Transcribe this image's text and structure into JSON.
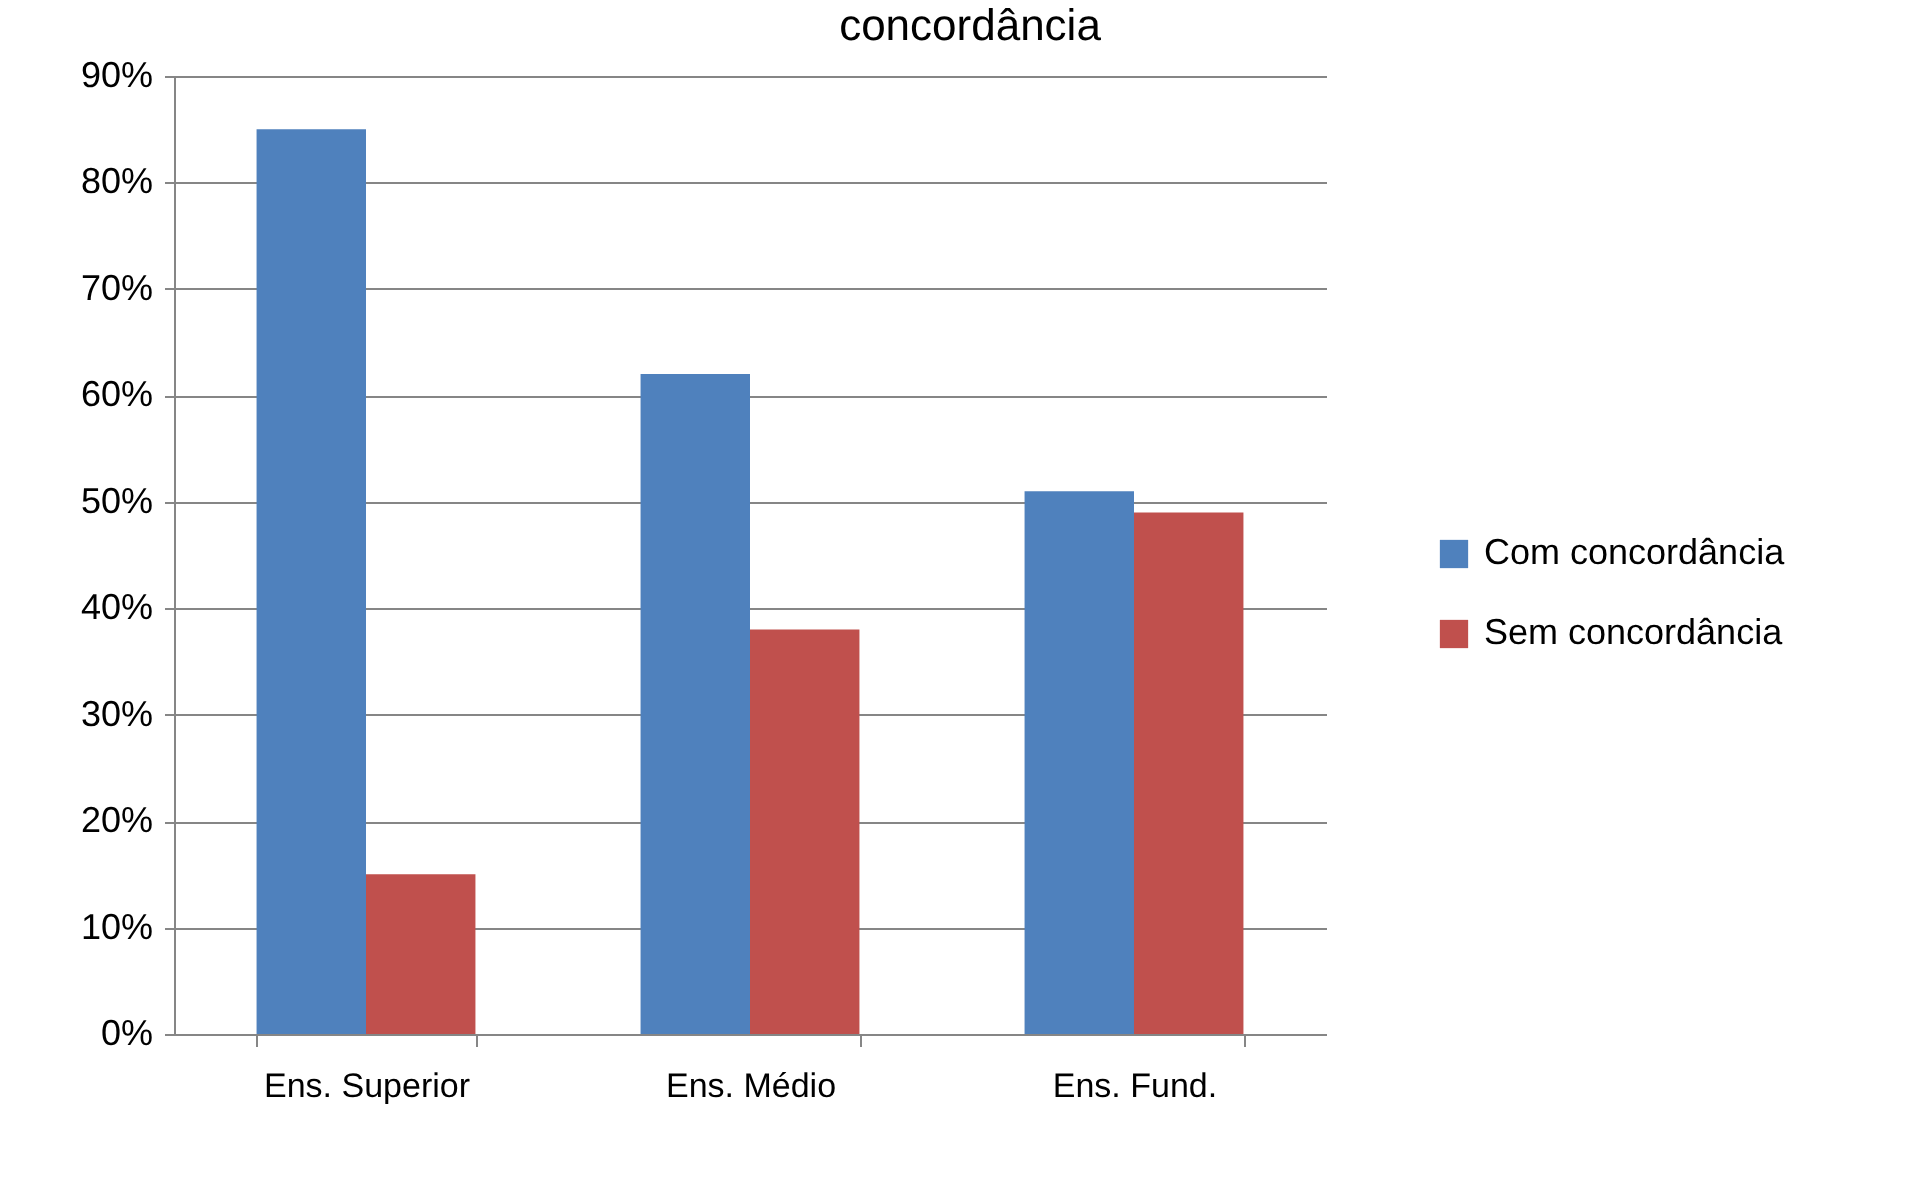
{
  "chart_data": {
    "type": "bar",
    "title": "concordância",
    "categories": [
      "Ens. Superior",
      "Ens. Médio",
      "Ens. Fund."
    ],
    "series": [
      {
        "name": "Com concordância",
        "color": "#4f81bd",
        "values": [
          85,
          62,
          51
        ]
      },
      {
        "name": "Sem concordância",
        "color": "#c0504d",
        "values": [
          15,
          38,
          49
        ]
      }
    ],
    "ylim": [
      0,
      90
    ],
    "yticks": [
      {
        "value": 0,
        "label": "0%"
      },
      {
        "value": 10,
        "label": "10%"
      },
      {
        "value": 20,
        "label": "20%"
      },
      {
        "value": 30,
        "label": "30%"
      },
      {
        "value": 40,
        "label": "40%"
      },
      {
        "value": 50,
        "label": "50%"
      },
      {
        "value": 60,
        "label": "60%"
      },
      {
        "value": 70,
        "label": "70%"
      },
      {
        "value": 80,
        "label": "80%"
      },
      {
        "value": 90,
        "label": "90%"
      }
    ],
    "grid": "y",
    "legend": "right"
  }
}
